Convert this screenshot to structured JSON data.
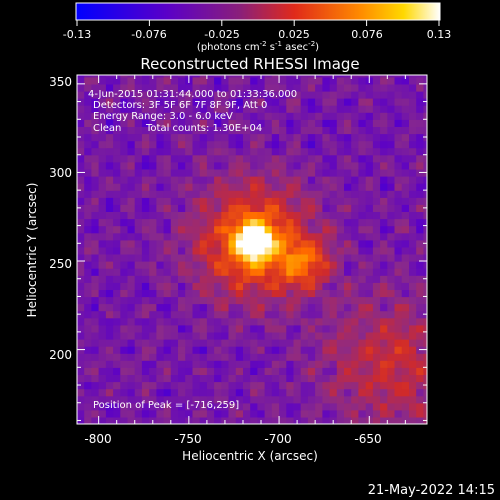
{
  "colorbar": {
    "tick_labels": [
      "-0.13",
      "-0.076",
      "-0.025",
      "0.025",
      "0.076",
      "0.13"
    ],
    "units_main": "(photons cm",
    "units_exp1": "-2",
    "units_mid": " s",
    "units_exp2": "-1",
    "units_end": " asec",
    "units_exp3": "-2",
    "units_close": ")"
  },
  "title": "Reconstructed RHESSI Image",
  "annotation": {
    "time_range": "4-Jun-2015 01:31:44.000 to 01:33:36.000",
    "detectors": "Detectors: 3F 5F 6F 7F 8F 9F, Att 0",
    "energy": "Energy Range: 3.0 - 6.0 keV",
    "clean": "Clean",
    "counts": "Total counts: 1.30E+04",
    "peak": "Position of Peak = [-716,259]"
  },
  "axes": {
    "xlabel": "Heliocentric X (arcsec)",
    "ylabel": "Heliocentric Y (arcsec)",
    "x_ticks": [
      "-800",
      "-750",
      "-700",
      "-650"
    ],
    "y_ticks": [
      "200",
      "250",
      "300",
      "350"
    ],
    "x_tick_values": [
      -800,
      -750,
      -700,
      -650
    ],
    "y_tick_values": [
      200,
      250,
      300,
      350
    ],
    "xlim": [
      -812,
      -618
    ],
    "ylim": [
      158,
      355
    ]
  },
  "image": {
    "peak_x": -716,
    "peak_y": 259,
    "secondary_x": -688,
    "secondary_y": 247,
    "colormap": [
      "#0000ff",
      "#5a00c8",
      "#8a2a8a",
      "#d02a2a",
      "#ff6a00",
      "#ffc000",
      "#ffffff"
    ]
  },
  "footer": {
    "date": "21-May-2022 14:15"
  }
}
